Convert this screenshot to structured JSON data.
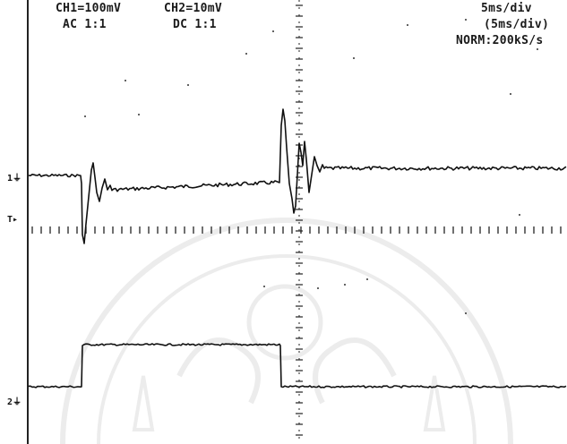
{
  "readouts": {
    "ch1_scale": "CH1=100mV",
    "ch1_coupling": "AC  1:1",
    "ch2_scale": "CH2=10mV",
    "ch2_coupling": "DC  1:1",
    "timebase": "5ms/div",
    "timebase_sub": "(5ms/div)",
    "acquisition": "NORM:200kS/s"
  },
  "markers": {
    "ch1": "1",
    "trigger": "T",
    "ch2": "2"
  },
  "colors": {
    "background": "#ffffff",
    "trace": "#111111",
    "graticule": "#222222"
  },
  "watermark": "university-seal-watermark"
}
